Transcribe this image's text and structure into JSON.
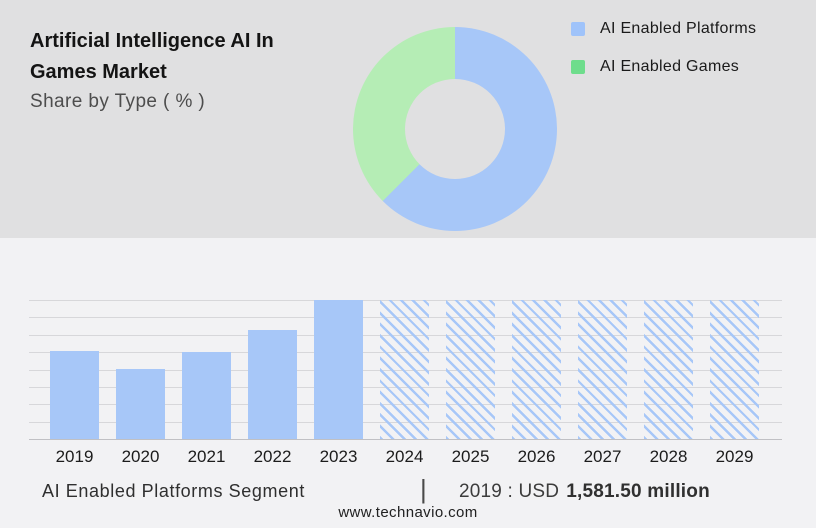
{
  "header": {
    "title_line1": "Artificial Intelligence AI In",
    "title_line2": "Games Market",
    "subtitle": "Share by Type ( % )"
  },
  "legend": {
    "position": "top-right",
    "items": [
      {
        "label": "AI Enabled Platforms",
        "color": "#9fc3fa"
      },
      {
        "label": "AI Enabled Games",
        "color": "#6edd8c"
      }
    ]
  },
  "footer": {
    "segment_label": "AI Enabled Platforms Segment",
    "separator": "|",
    "value_prefix": "2019 : USD",
    "value_bold": "1,581.50 million",
    "website": "www.technavio.com"
  },
  "colors": {
    "top_background": "#e0e0e1",
    "bottom_background": "#f2f2f4",
    "series_blue": "#a7c7f8",
    "donut_green": "#b5edb5",
    "legend_green": "#6edd8c",
    "gridline": "#d7d7da",
    "axis_line": "#c0c0c4"
  },
  "chart_data": [
    {
      "type": "pie",
      "subtype": "donut",
      "title": "Share by Type ( % )",
      "labels": [
        "AI Enabled Platforms",
        "AI Enabled Games"
      ],
      "values_percent": [
        62.5,
        37.5
      ],
      "colors": [
        "#a7c7f8",
        "#b5edb5"
      ],
      "start_angle_deg": 0,
      "direction": "clockwise",
      "hole_ratio": 0.49,
      "legend_position": "right"
    },
    {
      "type": "bar",
      "categories": [
        "2019",
        "2020",
        "2021",
        "2022",
        "2023",
        "2024",
        "2025",
        "2026",
        "2027",
        "2028",
        "2029"
      ],
      "values_relative": [
        0.633,
        0.504,
        0.626,
        0.784,
        1.0,
        1.0,
        1.0,
        1.0,
        1.0,
        1.0,
        1.0
      ],
      "forecast_from_index": 5,
      "bar_color": "#a7c7f8",
      "historical_style": "solid",
      "forecast_style": "diagonal-hatch",
      "gridline_count": 9,
      "y_axis_labels_visible": false,
      "annotation": "2019 : USD 1,581.50 million"
    }
  ]
}
